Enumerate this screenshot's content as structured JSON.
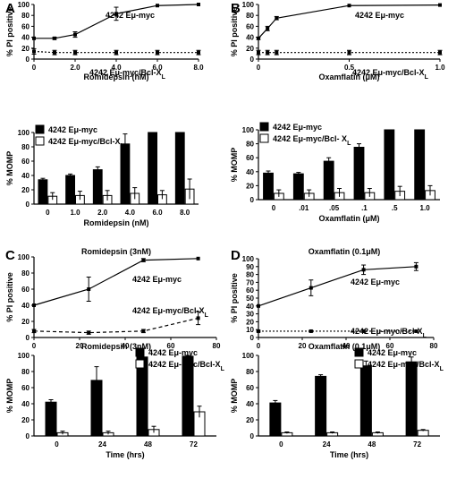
{
  "chart_data": [
    {
      "panel": "A",
      "type": "line",
      "x": [
        0,
        1,
        2,
        4,
        6,
        8
      ],
      "xticks": [
        "0",
        "2.0",
        "4.0",
        "6.0",
        "8.0"
      ],
      "xlabel": "Romidepsin (nM)",
      "ylabel": "% PI positive",
      "ylim": [
        0,
        100
      ],
      "yticks": [
        "0",
        "20",
        "40",
        "60",
        "80",
        "100"
      ],
      "series": [
        {
          "name": "4242 Eμ-myc",
          "values": [
            38,
            38,
            45,
            83,
            98,
            100
          ],
          "err": [
            0,
            2,
            5,
            12,
            0,
            0
          ],
          "style": "solid"
        },
        {
          "name": "4242 Eμ-myc/Bcl-XL",
          "values": [
            14,
            12,
            12,
            12,
            12,
            12
          ],
          "err": [
            5,
            4,
            4,
            4,
            4,
            4
          ],
          "style": "dotted"
        }
      ]
    },
    {
      "panel": "",
      "type": "bar",
      "categories": [
        "0",
        "1.0",
        "2.0",
        "4.0",
        "6.0",
        "8.0"
      ],
      "xlabel": "Romidepsin (nM)",
      "ylabel": "% MOMP",
      "ylim": [
        0,
        100
      ],
      "yticks": [
        "0",
        "20",
        "40",
        "60",
        "80",
        "100"
      ],
      "legend": "top-left",
      "series": [
        {
          "name": "4242 Eμ-myc",
          "values": [
            34,
            40,
            48,
            84,
            100,
            100
          ],
          "err": [
            2,
            2,
            4,
            14,
            0,
            0
          ],
          "color": "#000000"
        },
        {
          "name": "4242 Eμ-myc/Bcl-XL",
          "values": [
            11,
            12,
            12,
            15,
            13,
            21
          ],
          "err": [
            5,
            6,
            7,
            8,
            6,
            14
          ],
          "color": "#ffffff"
        }
      ]
    },
    {
      "panel": "B",
      "type": "line",
      "x": [
        0,
        0.05,
        0.1,
        0.5,
        1.0
      ],
      "xticks": [
        "0",
        "0.5",
        "1.0"
      ],
      "xtick_values": [
        0,
        0.5,
        1.0
      ],
      "xlabel": "Oxamflatin (μM)",
      "ylabel": "% PI positive",
      "ylim": [
        0,
        100
      ],
      "yticks": [
        "0",
        "20",
        "40",
        "60",
        "80",
        "100"
      ],
      "series": [
        {
          "name": "4242 Eμ-myc",
          "values": [
            38,
            56,
            75,
            98,
            99
          ],
          "err": [
            2,
            4,
            3,
            0,
            0
          ],
          "style": "solid"
        },
        {
          "name": "4242 Eμ-myc/Bcl-XL",
          "values": [
            12,
            12,
            12,
            12,
            12
          ],
          "err": [
            4,
            4,
            4,
            4,
            4
          ],
          "style": "dotted"
        }
      ]
    },
    {
      "panel": "",
      "type": "bar",
      "categories": [
        "0",
        ".01",
        ".05",
        ".1",
        ".5",
        "1.0"
      ],
      "xlabel": "Oxamflatin (μM)",
      "ylabel": "% MOMP",
      "ylim": [
        0,
        100
      ],
      "yticks": [
        "0",
        "20",
        "40",
        "60",
        "80",
        "100"
      ],
      "legend": "top-left",
      "series": [
        {
          "name": "4242 Eμ-myc",
          "values": [
            38,
            37,
            55,
            75,
            100,
            100
          ],
          "err": [
            3,
            2,
            5,
            5,
            0,
            0
          ],
          "color": "#000000"
        },
        {
          "name": "4242 Eμ-myc/Bcl- XL",
          "values": [
            9,
            9,
            10,
            10,
            12,
            13
          ],
          "err": [
            5,
            5,
            6,
            6,
            7,
            7
          ],
          "color": "#ffffff"
        }
      ]
    },
    {
      "panel": "C",
      "type": "line",
      "title": "Romidepsin (3nM)",
      "x": [
        0,
        24,
        48,
        72
      ],
      "xticks": [
        "0",
        "20",
        "40",
        "60",
        "80"
      ],
      "ylabel": "% PI positive",
      "ylim": [
        0,
        100
      ],
      "yticks": [
        "0",
        "20",
        "40",
        "60",
        "80",
        "100"
      ],
      "series": [
        {
          "name": "4242 Eμ-myc",
          "values": [
            40,
            60,
            96,
            98
          ],
          "err": [
            0,
            15,
            2,
            0
          ],
          "style": "solid"
        },
        {
          "name": "4242 Eμ-myc/Bcl-XL",
          "values": [
            8,
            6,
            8,
            24
          ],
          "err": [
            2,
            2,
            2,
            8
          ],
          "style": "dashed"
        }
      ]
    },
    {
      "panel": "",
      "type": "bar",
      "title": "Romidepsin (3nM)",
      "categories": [
        "0",
        "24",
        "48",
        "72"
      ],
      "xlabel": "Time (hrs)",
      "ylabel": "% MOMP",
      "ylim": [
        0,
        100
      ],
      "yticks": [
        "0",
        "20",
        "40",
        "60",
        "80",
        "100"
      ],
      "legend": "top-right",
      "series": [
        {
          "name": "4242 Eμ-myc",
          "values": [
            42,
            69,
            98,
            99
          ],
          "err": [
            3,
            17,
            2,
            1
          ],
          "color": "#000000"
        },
        {
          "name": "4242 Eμ-myc/Bcl-XL",
          "values": [
            4,
            4,
            8,
            30
          ],
          "err": [
            2,
            2,
            4,
            7
          ],
          "color": "#ffffff"
        }
      ]
    },
    {
      "panel": "D",
      "type": "line",
      "title": "Oxamflatin (0.1μM)",
      "x": [
        0,
        24,
        48,
        72
      ],
      "xticks": [
        "0",
        "20",
        "40",
        "60",
        "80"
      ],
      "ylabel": "% PI positive",
      "ylim": [
        0,
        100
      ],
      "yticks": [
        "0",
        "10",
        "20",
        "30",
        "40",
        "50",
        "60",
        "70",
        "80",
        "90",
        "100"
      ],
      "series": [
        {
          "name": "4242 Eμ-myc",
          "values": [
            40,
            63,
            86,
            90
          ],
          "err": [
            0,
            10,
            6,
            5
          ],
          "style": "solid"
        },
        {
          "name": "4242 Eμ-myc/Bcl-XL",
          "values": [
            8,
            8,
            8,
            8
          ],
          "err": [
            1,
            1,
            1,
            1
          ],
          "style": "dotted"
        }
      ]
    },
    {
      "panel": "",
      "type": "bar",
      "title": "Oxamflatin (0.1μM)",
      "categories": [
        "0",
        "24",
        "48",
        "72"
      ],
      "xlabel": "Time (hrs)",
      "ylabel": "% MOMP",
      "ylim": [
        0,
        100
      ],
      "yticks": [
        "0",
        "20",
        "40",
        "60",
        "80",
        "100"
      ],
      "legend": "top-right",
      "series": [
        {
          "name": "4242 Eμ-myc",
          "values": [
            41,
            74,
            87,
            92
          ],
          "err": [
            3,
            2,
            6,
            6
          ],
          "color": "#000000"
        },
        {
          "name": "4242 Eμ-myc/Bcl-XL",
          "values": [
            4,
            4,
            4,
            7
          ],
          "err": [
            1,
            1,
            1,
            1
          ],
          "color": "#ffffff"
        }
      ]
    }
  ]
}
